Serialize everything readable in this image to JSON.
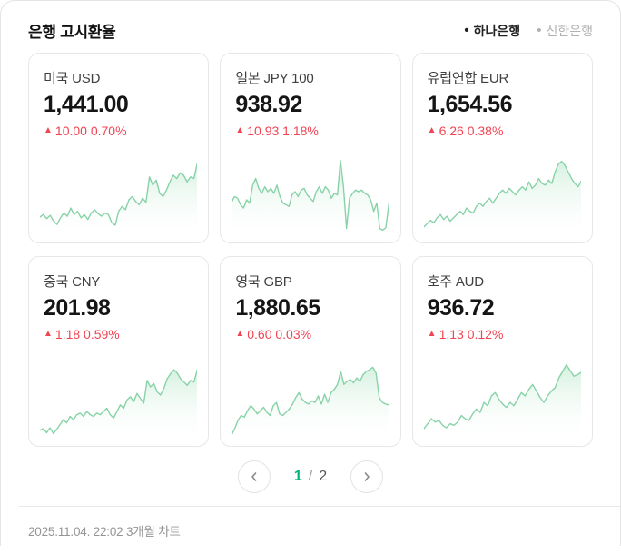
{
  "header": {
    "title": "은행 고시환율",
    "banks": [
      {
        "label": "하나은행",
        "active": true
      },
      {
        "label": "신한은행",
        "active": false
      }
    ]
  },
  "symbols": {
    "bullet": "•",
    "up_arrow": "▲"
  },
  "colors": {
    "up": "#f04452",
    "chart_line": "#88d2a8",
    "chart_fill_top": "#cdeeda",
    "accent": "#00b578"
  },
  "cards": [
    {
      "label": "미국 USD",
      "value": "1,441.00",
      "change": "10.00 0.70%",
      "direction": "up",
      "chart": {
        "type": "area",
        "points": [
          22,
          25,
          20,
          24,
          17,
          13,
          21,
          27,
          23,
          33,
          25,
          29,
          21,
          25,
          19,
          27,
          31,
          26,
          23,
          27,
          25,
          15,
          12,
          29,
          35,
          31,
          43,
          47,
          41,
          37,
          45,
          40,
          71,
          61,
          67,
          51,
          47,
          55,
          65,
          73,
          69,
          76,
          73,
          65,
          71,
          69,
          88
        ]
      }
    },
    {
      "label": "일본 JPY 100",
      "value": "938.92",
      "change": "10.93 1.18%",
      "direction": "up",
      "chart": {
        "type": "area",
        "points": [
          40,
          47,
          45,
          37,
          33,
          43,
          39,
          61,
          69,
          57,
          51,
          59,
          53,
          57,
          51,
          61,
          47,
          39,
          37,
          35,
          49,
          53,
          47,
          55,
          57,
          49,
          45,
          41,
          53,
          59,
          51,
          59,
          55,
          45,
          51,
          49,
          91,
          59,
          8,
          45,
          51,
          55,
          53,
          55,
          51,
          49,
          43,
          29,
          39,
          8,
          6,
          9,
          38
        ]
      }
    },
    {
      "label": "유럽연합 EUR",
      "value": "1,654.56",
      "change": "6.26 0.38%",
      "direction": "up",
      "chart": {
        "type": "area",
        "points": [
          10,
          14,
          18,
          15,
          21,
          25,
          19,
          23,
          17,
          21,
          25,
          29,
          25,
          33,
          29,
          27,
          35,
          39,
          35,
          41,
          45,
          39,
          45,
          51,
          55,
          51,
          57,
          53,
          49,
          55,
          59,
          55,
          65,
          57,
          61,
          69,
          63,
          61,
          67,
          63,
          77,
          87,
          90,
          85,
          77,
          69,
          63,
          59,
          66
        ]
      }
    },
    {
      "label": "중국 CNY",
      "value": "201.98",
      "change": "1.18 0.59%",
      "direction": "up",
      "chart": {
        "type": "area",
        "points": [
          10,
          12,
          7,
          13,
          6,
          11,
          17,
          23,
          19,
          27,
          23,
          29,
          31,
          27,
          33,
          29,
          27,
          31,
          29,
          33,
          37,
          29,
          25,
          33,
          41,
          37,
          47,
          51,
          45,
          55,
          49,
          43,
          71,
          63,
          67,
          57,
          53,
          61,
          73,
          79,
          84,
          80,
          73,
          69,
          65,
          71,
          69,
          84
        ]
      }
    },
    {
      "label": "영국 GBP",
      "value": "1,880.65",
      "change": "0.60 0.03%",
      "direction": "up",
      "chart": {
        "type": "area",
        "points": [
          4,
          12,
          22,
          28,
          26,
          34,
          40,
          36,
          30,
          34,
          38,
          32,
          28,
          40,
          44,
          30,
          28,
          32,
          36,
          42,
          50,
          56,
          48,
          44,
          42,
          46,
          44,
          52,
          42,
          54,
          44,
          56,
          60,
          66,
          82,
          66,
          70,
          72,
          68,
          74,
          70,
          78,
          82,
          84,
          87,
          80,
          50,
          44,
          42,
          41
        ]
      }
    },
    {
      "label": "호주 AUD",
      "value": "936.72",
      "change": "1.13 0.12%",
      "direction": "up",
      "chart": {
        "type": "area",
        "points": [
          12,
          18,
          24,
          20,
          22,
          16,
          13,
          18,
          16,
          20,
          28,
          24,
          22,
          30,
          36,
          32,
          44,
          40,
          52,
          56,
          48,
          42,
          38,
          44,
          40,
          48,
          56,
          52,
          60,
          66,
          58,
          50,
          44,
          52,
          58,
          62,
          74,
          82,
          90,
          83,
          76,
          78,
          81
        ]
      }
    }
  ],
  "pagination": {
    "current": "1",
    "separator": "/",
    "total": "2"
  },
  "footer": {
    "updated": "2025.11.04. 22:02 3개월 차트"
  }
}
